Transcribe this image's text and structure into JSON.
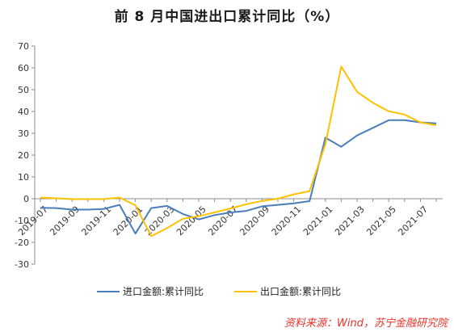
{
  "chart_data": {
    "type": "line",
    "title": "前 8 月中国进出口累计同比（%）",
    "source": "资料来源：Wind，苏宁金融研究院",
    "ylim": [
      -30,
      70
    ],
    "y_ticks": [
      70,
      60,
      50,
      40,
      30,
      20,
      10,
      0,
      -10,
      -20,
      -30
    ],
    "grid": false,
    "legend_position": "bottom",
    "x": [
      "2019-07",
      "2019-08",
      "2019-09",
      "2019-10",
      "2019-11",
      "2019-12",
      "2020-01",
      "2020-02",
      "2020-03",
      "2020-04",
      "2020-05",
      "2020-06",
      "2020-07",
      "2020-08",
      "2020-09",
      "2020-10",
      "2020-11",
      "2020-12",
      "2021-01",
      "2021-02",
      "2021-03",
      "2021-04",
      "2021-05",
      "2021-06",
      "2021-07",
      "2021-08"
    ],
    "x_tick_labels": [
      "2019-07",
      "2019-09",
      "2019-11",
      "2020-01",
      "2020-03",
      "2020-05",
      "2020-07",
      "2020-09",
      "2020-11",
      "2021-01",
      "2021-03",
      "2021-05",
      "2021-07"
    ],
    "series": [
      {
        "name": "进口金额:累计同比",
        "color": "#4a7ebb",
        "values": [
          -4.2,
          -4.3,
          -5.0,
          -5.0,
          -4.7,
          -2.8,
          -16.0,
          -4.3,
          -3.3,
          -7.0,
          -9.5,
          -7.5,
          -6.3,
          -5.6,
          -3.5,
          -2.8,
          -2.1,
          -1.1,
          28.0,
          23.8,
          29.0,
          32.5,
          36.0,
          36.0,
          35.0,
          34.5
        ]
      },
      {
        "name": "出口金额:累计同比",
        "color": "#ffc000",
        "values": [
          0.5,
          0.2,
          -0.2,
          -0.2,
          -0.2,
          0.5,
          -3.0,
          -17.2,
          -13.5,
          -9.2,
          -8.0,
          -6.3,
          -4.5,
          -2.5,
          -1.0,
          0.0,
          2.0,
          3.5,
          25.0,
          60.6,
          49.0,
          44.0,
          40.1,
          38.6,
          35.0,
          33.7
        ]
      }
    ]
  }
}
